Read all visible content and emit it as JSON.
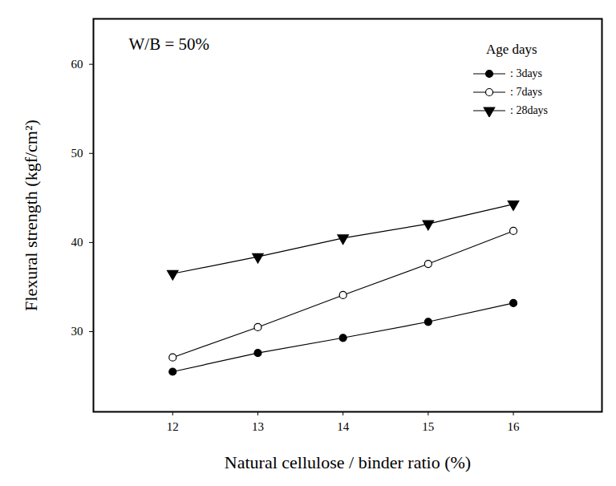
{
  "chart_data": {
    "type": "line",
    "annotation": "W/B = 50%",
    "xlabel": "Natural cellulose / binder ratio (%)",
    "ylabel": "Flexural strength (kgf/cm²)",
    "legend_title": "Age days",
    "legend": "upper right",
    "x": [
      12,
      13,
      14,
      15,
      16
    ],
    "xlim": [
      11.07,
      17.04
    ],
    "xticks": [
      12,
      13,
      14,
      15,
      16
    ],
    "ylim": [
      21.0,
      65.1
    ],
    "yticks": [
      30,
      40,
      50,
      60
    ],
    "grid": false,
    "series": [
      {
        "name": ": 3days",
        "color": "#000000",
        "marker": "circle",
        "line_style": "solid",
        "values": [
          25.5,
          27.6,
          29.3,
          31.1,
          33.2
        ]
      },
      {
        "name": ": 7days",
        "color": "#000000",
        "marker": "circle_open",
        "line_style": "solid",
        "values": [
          27.1,
          30.5,
          34.1,
          37.6,
          41.3
        ]
      },
      {
        "name": ": 28days",
        "color": "#000000",
        "marker": "triangle_down",
        "line_style": "solid",
        "values": [
          36.5,
          38.4,
          40.5,
          42.1,
          44.3
        ]
      }
    ]
  }
}
